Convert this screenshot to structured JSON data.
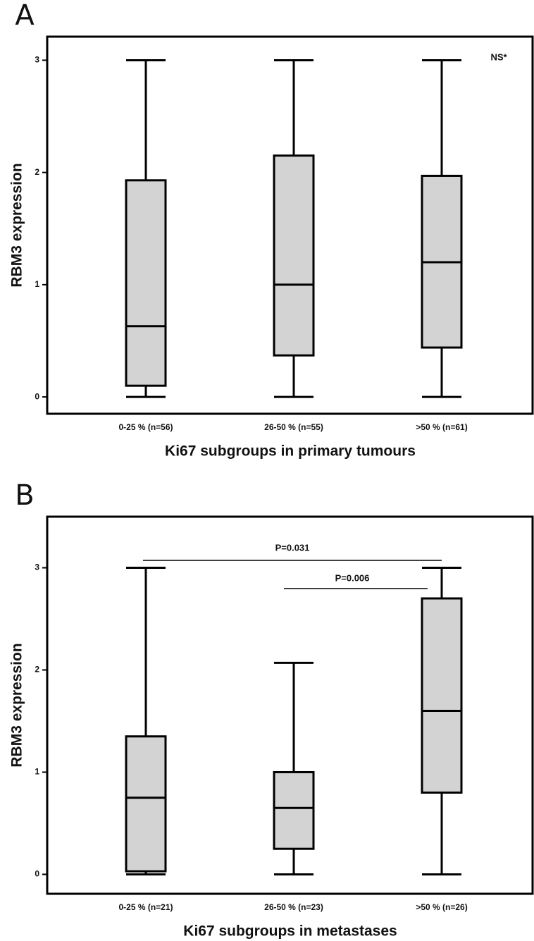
{
  "chart_data": [
    {
      "type": "box",
      "panel_label": "A",
      "y_label": "RBM3 expression",
      "x_label": "Ki67 subgroups in primary tumours",
      "categories": [
        "0-25 % (n=56)",
        "26-50 % (n=55)",
        ">50 % (n=61)"
      ],
      "boxes": [
        {
          "min": 0,
          "q1": 0.1,
          "median": 0.63,
          "q3": 1.93,
          "max": 3
        },
        {
          "min": 0,
          "q1": 0.37,
          "median": 1.0,
          "q3": 2.15,
          "max": 3
        },
        {
          "min": 0,
          "q1": 0.44,
          "median": 1.2,
          "q3": 1.97,
          "max": 3
        }
      ],
      "color": "#d3d3d3",
      "ylim": [
        -0.15,
        3.21
      ],
      "yticks": [
        0,
        1,
        2,
        3
      ],
      "annotations": [
        "NS*"
      ]
    },
    {
      "type": "box",
      "panel_label": "B",
      "y_label": "RBM3 expression",
      "x_label": "Ki67 subgroups in metastases",
      "categories": [
        "0-25 % (n=21)",
        "26-50 % (n=23)",
        ">50 % (n=26)"
      ],
      "boxes": [
        {
          "min": 0,
          "q1": 0.03,
          "median": 0.75,
          "q3": 1.35,
          "max": 3
        },
        {
          "min": 0,
          "q1": 0.25,
          "median": 0.65,
          "q3": 1.0,
          "max": 2.07
        },
        {
          "min": 0,
          "q1": 0.8,
          "median": 1.6,
          "q3": 2.7,
          "max": 3
        }
      ],
      "color": "#d3d3d3",
      "ylim": [
        -0.19,
        3.5
      ],
      "yticks": [
        0,
        1,
        2,
        3
      ],
      "annotations": [
        "P=0.031",
        "P=0.006"
      ]
    }
  ]
}
